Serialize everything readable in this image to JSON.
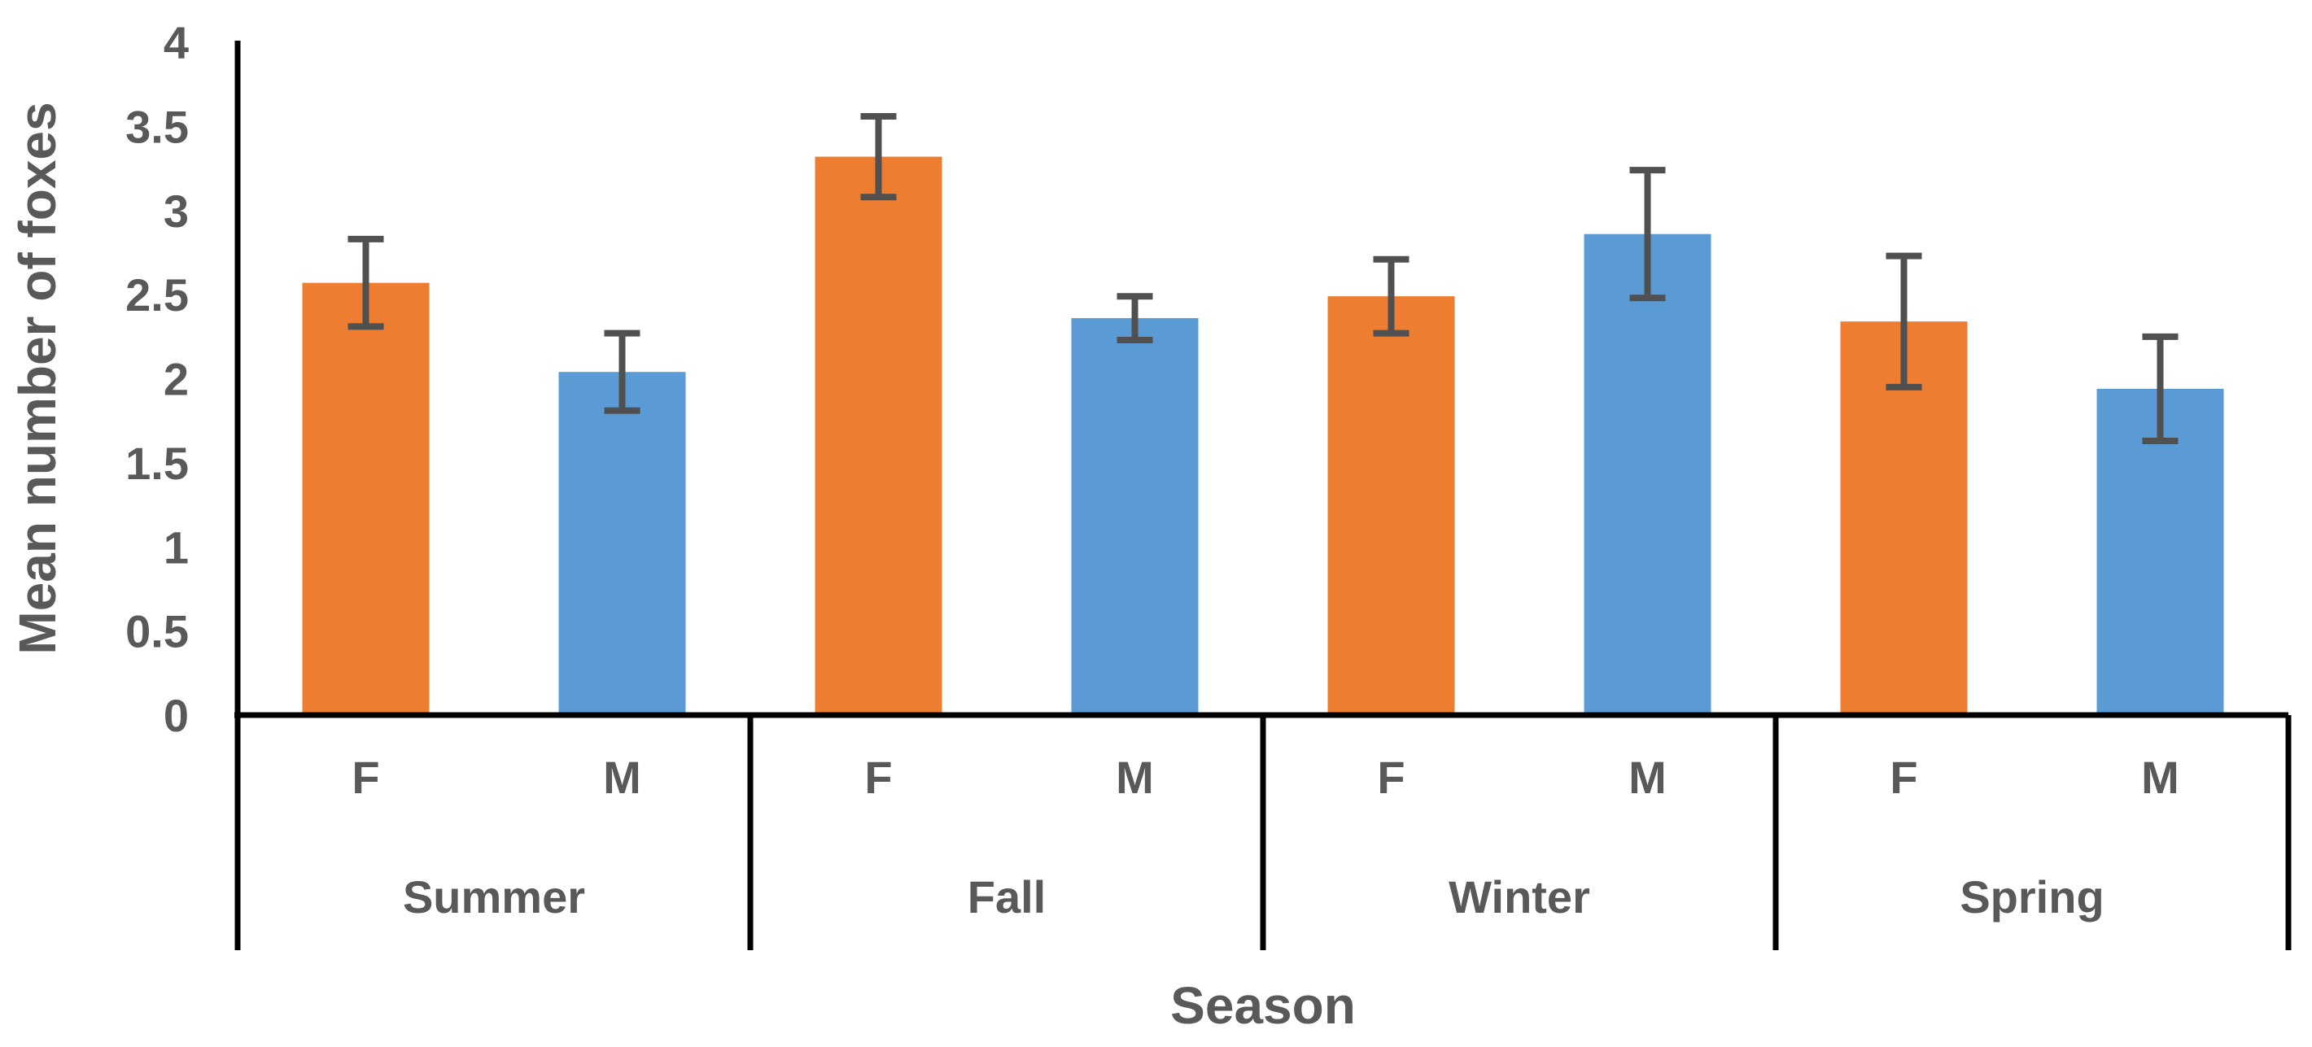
{
  "chart_data": {
    "type": "bar",
    "title": "",
    "xlabel": "Season",
    "ylabel": "Mean number of foxes",
    "ylim": [
      0,
      4
    ],
    "y_ticks": [
      "0",
      "0.5",
      "1",
      "1.5",
      "2",
      "2.5",
      "3",
      "3.5",
      "4"
    ],
    "grid": false,
    "groups": [
      {
        "season": "Summer",
        "bars": [
          {
            "sex": "F",
            "value": 2.57,
            "error": 0.26
          },
          {
            "sex": "M",
            "value": 2.04,
            "error": 0.23
          }
        ]
      },
      {
        "season": "Fall",
        "bars": [
          {
            "sex": "F",
            "value": 3.32,
            "error": 0.24
          },
          {
            "sex": "M",
            "value": 2.36,
            "error": 0.13
          }
        ]
      },
      {
        "season": "Winter",
        "bars": [
          {
            "sex": "F",
            "value": 2.49,
            "error": 0.22
          },
          {
            "sex": "M",
            "value": 2.86,
            "error": 0.38
          }
        ]
      },
      {
        "season": "Spring",
        "bars": [
          {
            "sex": "F",
            "value": 2.34,
            "error": 0.39
          },
          {
            "sex": "M",
            "value": 1.94,
            "error": 0.31
          }
        ]
      }
    ],
    "colors": {
      "F": "#ED7D31",
      "M": "#5B9BD5",
      "error_bar": "#505050",
      "text": "#595959",
      "axis": "#000000"
    }
  }
}
